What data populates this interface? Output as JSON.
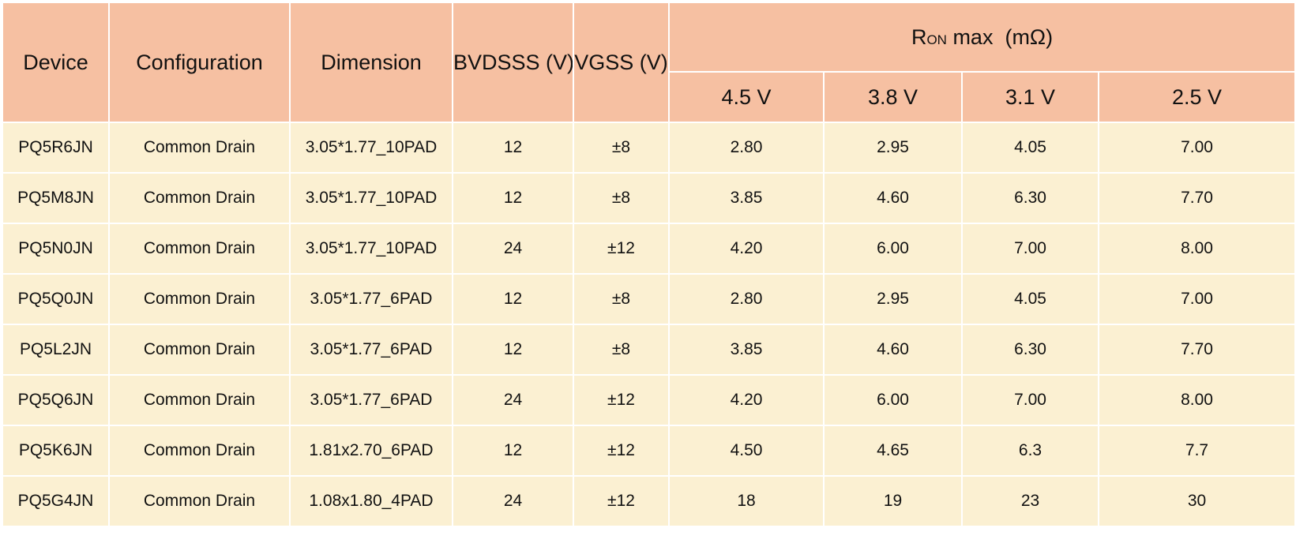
{
  "header": {
    "device": "Device",
    "configuration": "Configuration",
    "dimension": "Dimension",
    "bvdsss": "BVDSSS (V)",
    "vgss": "VGSS (V)",
    "ron_group": {
      "symbol": "R",
      "subscript": "ON",
      "rest": " max  (mΩ)"
    },
    "ron_columns": [
      "4.5 V",
      "3.8 V",
      "3.1 V",
      "2.5 V"
    ]
  },
  "rows": [
    {
      "device": "PQ5R6JN",
      "configuration": "Common Drain",
      "dimension": "3.05*1.77_10PAD",
      "bvdsss": "12",
      "vgss": "±8",
      "ron": [
        "2.80",
        "2.95",
        "4.05",
        "7.00"
      ]
    },
    {
      "device": "PQ5M8JN",
      "configuration": "Common Drain",
      "dimension": "3.05*1.77_10PAD",
      "bvdsss": "12",
      "vgss": "±8",
      "ron": [
        "3.85",
        "4.60",
        "6.30",
        "7.70"
      ]
    },
    {
      "device": "PQ5N0JN",
      "configuration": "Common Drain",
      "dimension": "3.05*1.77_10PAD",
      "bvdsss": "24",
      "vgss": "±12",
      "ron": [
        "4.20",
        "6.00",
        "7.00",
        "8.00"
      ]
    },
    {
      "device": "PQ5Q0JN",
      "configuration": "Common Drain",
      "dimension": "3.05*1.77_6PAD",
      "bvdsss": "12",
      "vgss": "±8",
      "ron": [
        "2.80",
        "2.95",
        "4.05",
        "7.00"
      ]
    },
    {
      "device": "PQ5L2JN",
      "configuration": "Common Drain",
      "dimension": "3.05*1.77_6PAD",
      "bvdsss": "12",
      "vgss": "±8",
      "ron": [
        "3.85",
        "4.60",
        "6.30",
        "7.70"
      ]
    },
    {
      "device": "PQ5Q6JN",
      "configuration": "Common Drain",
      "dimension": "3.05*1.77_6PAD",
      "bvdsss": "24",
      "vgss": "±12",
      "ron": [
        "4.20",
        "6.00",
        "7.00",
        "8.00"
      ]
    },
    {
      "device": "PQ5K6JN",
      "configuration": "Common Drain",
      "dimension": "1.81x2.70_6PAD",
      "bvdsss": "12",
      "vgss": "±12",
      "ron": [
        "4.50",
        "4.65",
        "6.3",
        "7.7"
      ]
    },
    {
      "device": "PQ5G4JN",
      "configuration": "Common Drain",
      "dimension": "1.08x1.80_4PAD",
      "bvdsss": "24",
      "vgss": "±12",
      "ron": [
        "18",
        "19",
        "23",
        "30"
      ]
    }
  ],
  "colors": {
    "header_bg": "#f6c0a2",
    "body_bg": "#fbf0d2",
    "grid_line": "#ffffff"
  }
}
